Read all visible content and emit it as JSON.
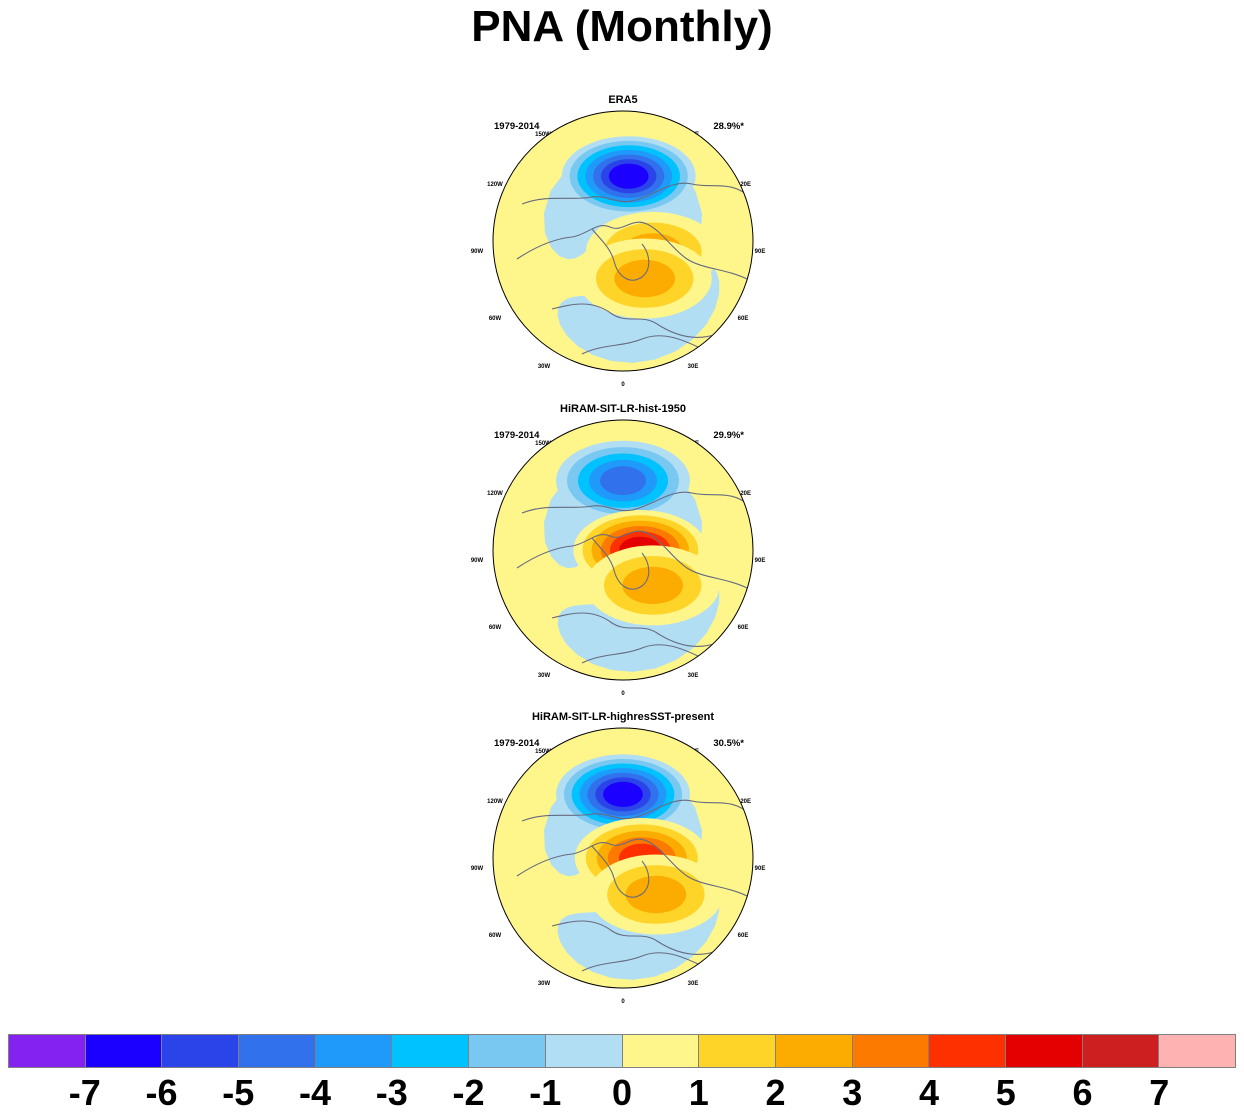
{
  "title": "PNA (Monthly)",
  "longitude_labels": [
    "180",
    "150E",
    "120E",
    "90E",
    "60E",
    "30E",
    "0",
    "30W",
    "60W",
    "90W",
    "120W",
    "150W"
  ],
  "panels": [
    {
      "name": "ERA5",
      "period": "1979-2014",
      "variance": "28.9%*",
      "centers": [
        {
          "value": -6.5,
          "lon": 185,
          "lat": 45
        },
        {
          "value": 2.5,
          "lon": 290,
          "lat": 68
        },
        {
          "value": 2.5,
          "lon": 330,
          "lat": 60
        }
      ]
    },
    {
      "name": "HiRAM-SIT-LR-hist-1950",
      "period": "1979-2014",
      "variance": "29.9%*",
      "centers": [
        {
          "value": -4.5,
          "lon": 180,
          "lat": 42
        },
        {
          "value": 5.5,
          "lon": 270,
          "lat": 78
        },
        {
          "value": 2.5,
          "lon": 320,
          "lat": 58
        }
      ]
    },
    {
      "name": "HiRAM-SIT-LR-highresSST-present",
      "period": "1979-2014",
      "variance": "30.5%*",
      "centers": [
        {
          "value": -6.5,
          "lon": 180,
          "lat": 46
        },
        {
          "value": 4.5,
          "lon": 270,
          "lat": 77
        },
        {
          "value": 2.5,
          "lon": 318,
          "lat": 56
        }
      ]
    }
  ],
  "colorbar": {
    "labels": [
      "-7",
      "-6",
      "-5",
      "-4",
      "-3",
      "-2",
      "-1",
      "0",
      "1",
      "2",
      "3",
      "4",
      "5",
      "6",
      "7"
    ],
    "colors": [
      "#8422f2",
      "#1c00ff",
      "#2b44ea",
      "#3172ec",
      "#1f9afa",
      "#00c2fe",
      "#78c8f2",
      "#b2def4",
      "#fef58b",
      "#fed428",
      "#fcac00",
      "#fd7a00",
      "#fe3000",
      "#e40000",
      "#cd1f1f",
      "#ffb2b2"
    ]
  }
}
